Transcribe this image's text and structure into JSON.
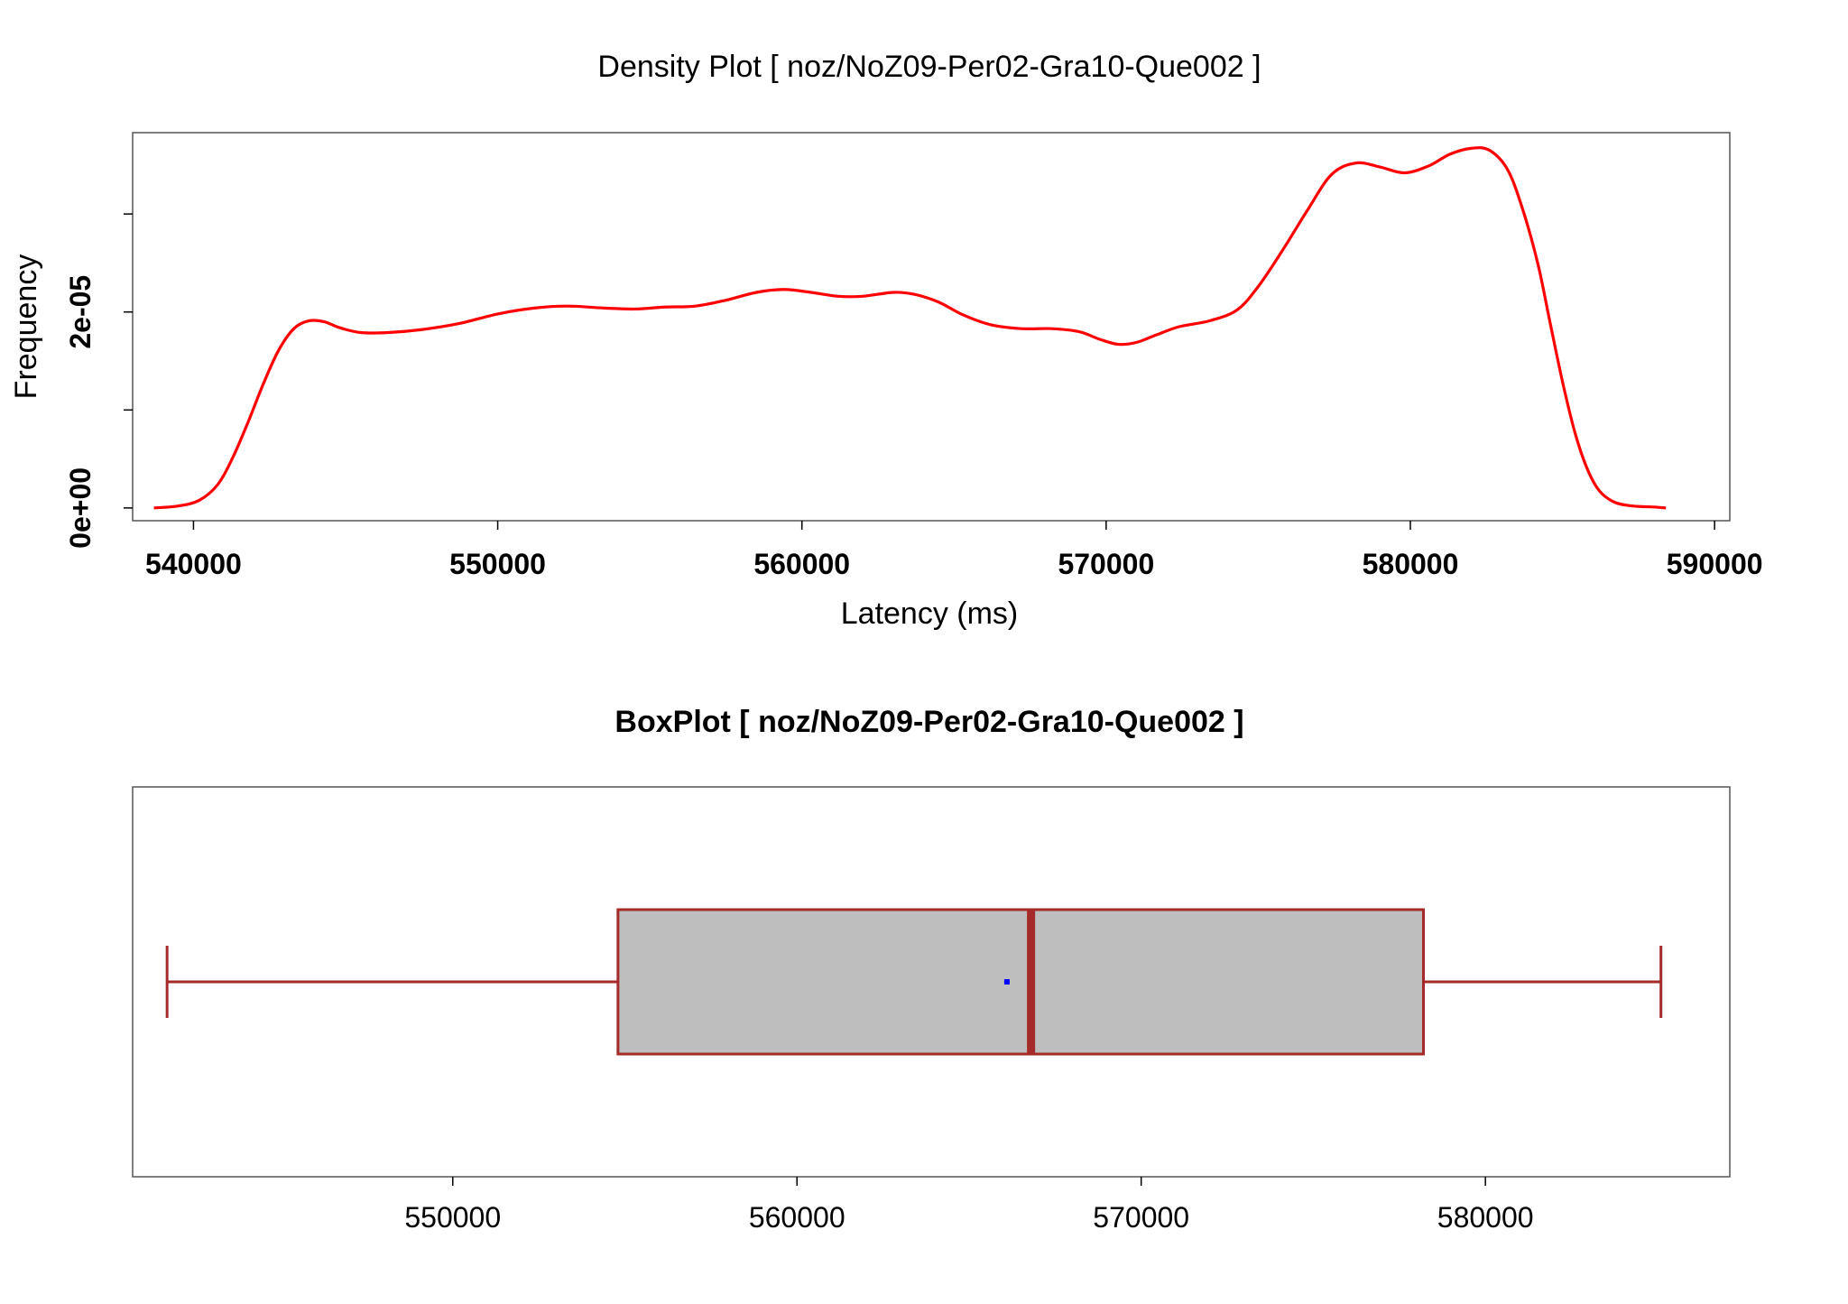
{
  "colors": {
    "density_line": "#ff0000",
    "box_fill": "#bebebe",
    "box_stroke": "#a52a2a",
    "mean_marker": "#0000ff",
    "frame": "#555555"
  },
  "chart_data": [
    {
      "type": "line",
      "title": "Density Plot [ noz/NoZ09-Per02-Gra10-Que002 ]",
      "xlabel": "Latency (ms)",
      "ylabel": "Frequency",
      "xlim": [
        538000,
        590500
      ],
      "ylim": [
        -1.3e-06,
        3.83e-05
      ],
      "x_ticks": [
        540000,
        550000,
        560000,
        570000,
        580000,
        590000
      ],
      "x_tick_labels": [
        "540000",
        "550000",
        "560000",
        "570000",
        "580000",
        "590000"
      ],
      "y_ticks": [
        0,
        1e-05,
        2e-05,
        3e-05
      ],
      "y_tick_labels": [
        "0e+00",
        "",
        "2e-05",
        ""
      ],
      "grid": false,
      "series": [
        {
          "x": [
            538700,
            539500,
            540200,
            540800,
            541300,
            541800,
            542300,
            542800,
            543300,
            543800,
            544300,
            544800,
            545500,
            546400,
            547500,
            548700,
            550000,
            551200,
            552300,
            553500,
            554500,
            555500,
            556500,
            557500,
            558500,
            559400,
            560300,
            561200,
            562000,
            563000,
            563700,
            564500,
            565300,
            566200,
            567200,
            568200,
            569100,
            569800,
            570400,
            571000,
            571600,
            572400,
            573400,
            574300,
            575000,
            575800,
            576600,
            577400,
            578200,
            579000,
            579800,
            580600,
            581300,
            582000,
            582600,
            583200,
            583700,
            584200,
            584600,
            585000,
            585400,
            585800,
            586200,
            586700,
            587300,
            588000,
            588400
          ],
          "y": [
            0.0,
            2e-07,
            8e-07,
            2.4e-06,
            5.2e-06,
            8.8e-06,
            1.27e-05,
            1.61e-05,
            1.83e-05,
            1.91e-05,
            1.9e-05,
            1.84e-05,
            1.79e-05,
            1.79e-05,
            1.82e-05,
            1.88e-05,
            1.98e-05,
            2.04e-05,
            2.06e-05,
            2.04e-05,
            2.03e-05,
            2.05e-05,
            2.06e-05,
            2.12e-05,
            2.2e-05,
            2.23e-05,
            2.2e-05,
            2.16e-05,
            2.16e-05,
            2.2e-05,
            2.18e-05,
            2.1e-05,
            1.97e-05,
            1.87e-05,
            1.83e-05,
            1.83e-05,
            1.8e-05,
            1.72e-05,
            1.67e-05,
            1.69e-05,
            1.76e-05,
            1.85e-05,
            1.91e-05,
            2.02e-05,
            2.26e-05,
            2.63e-05,
            3.03e-05,
            3.4e-05,
            3.52e-05,
            3.48e-05,
            3.42e-05,
            3.49e-05,
            3.61e-05,
            3.67e-05,
            3.65e-05,
            3.45e-05,
            3.04e-05,
            2.48e-05,
            1.88e-05,
            1.29e-05,
            7.8e-06,
            4.1e-06,
            1.8e-06,
            6e-07,
            2e-07,
            1e-07,
            0.0
          ]
        }
      ]
    },
    {
      "type": "box",
      "title": "BoxPlot [ noz/NoZ09-Per02-Gra10-Que002 ]",
      "xlim": [
        540700,
        587100
      ],
      "x_ticks": [
        550000,
        560000,
        570000,
        580000
      ],
      "x_tick_labels": [
        "550000",
        "560000",
        "570000",
        "580000"
      ],
      "whisker_low": 541700,
      "q1": 554800,
      "median": 566800,
      "q3": 578200,
      "whisker_high": 585100,
      "mean": 566100
    }
  ]
}
